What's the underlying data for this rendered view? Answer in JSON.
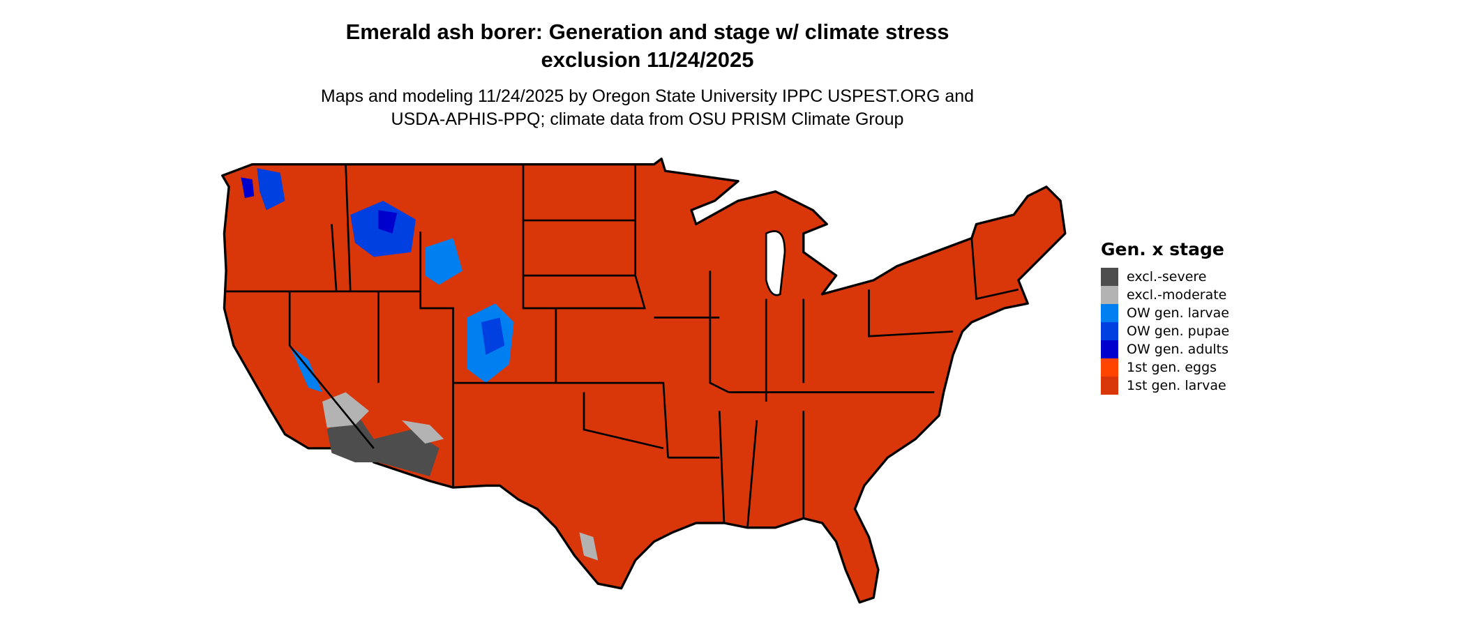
{
  "title": {
    "line1": "Emerald ash borer: Generation and stage w/ climate stress",
    "line2": "exclusion 11/24/2025"
  },
  "subtitle": {
    "line1": "Maps and modeling 11/24/2025 by Oregon State University IPPC USPEST.ORG and",
    "line2": "USDA-APHIS-PPQ; climate data from OSU PRISM Climate Group"
  },
  "legend": {
    "title": "Gen. x stage",
    "items": [
      {
        "label": "excl.-severe",
        "color": "#4d4d4d"
      },
      {
        "label": "excl.-moderate",
        "color": "#b3b3b3"
      },
      {
        "label": "OW gen. larvae",
        "color": "#0080f0"
      },
      {
        "label": "OW gen. pupae",
        "color": "#0040e0"
      },
      {
        "label": "OW gen. adults",
        "color": "#0000cc"
      },
      {
        "label": "1st gen. eggs",
        "color": "#ff4500"
      },
      {
        "label": "1st gen. larvae",
        "color": "#d9360a"
      }
    ]
  },
  "map": {
    "dominant_class": "1st gen. larvae",
    "border_color": "#000000"
  }
}
